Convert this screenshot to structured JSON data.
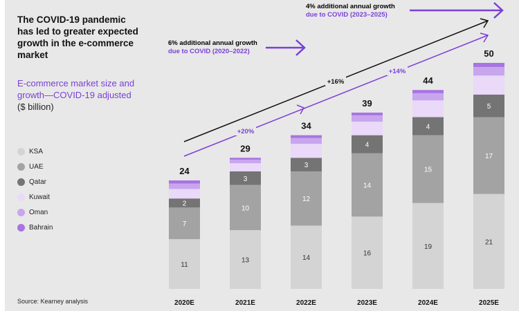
{
  "headline": "The COVID-19 pandemic has led to greater expected growth in the e-commerce market",
  "subtitle": "E-commerce market size and growth—COVID-19 adjusted",
  "unit": "($ billion)",
  "source": "Source: Kearney analysis",
  "annotations": {
    "a1_line1": "6% additional annual growth",
    "a1_line2": "due to COVID (2020–2022)",
    "a2_line1": "4% additional annual growth",
    "a2_line2": "due to COVID (2023–2025)"
  },
  "colors": {
    "background": "#e8e8e8",
    "accent": "#7a3fd6",
    "KSA": "#d4d4d4",
    "UAE": "#a3a3a3",
    "Qatar": "#747474",
    "Kuwait": "#ead9f8",
    "Oman": "#c8a6ee",
    "Bahrain": "#a873e2"
  },
  "chart_data": {
    "type": "bar",
    "stacked": true,
    "categories": [
      "2020E",
      "2021E",
      "2022E",
      "2023E",
      "2024E",
      "2025E"
    ],
    "totals": [
      24,
      29,
      34,
      39,
      44,
      50
    ],
    "series": [
      {
        "name": "KSA",
        "values": [
          11,
          13,
          14,
          16,
          19,
          21
        ],
        "labeled": true
      },
      {
        "name": "UAE",
        "values": [
          7,
          10,
          12,
          14,
          15,
          17
        ],
        "labeled": true
      },
      {
        "name": "Qatar",
        "values": [
          2,
          3,
          3,
          4,
          4,
          5
        ],
        "labeled": true
      },
      {
        "name": "Kuwait",
        "values": [
          2.1,
          1.8,
          3.1,
          3.0,
          3.7,
          4.2
        ],
        "labeled": false
      },
      {
        "name": "Oman",
        "values": [
          1.2,
          0.8,
          1.3,
          1.4,
          1.6,
          1.9
        ],
        "labeled": false
      },
      {
        "name": "Bahrain",
        "values": [
          0.7,
          0.4,
          0.6,
          0.6,
          0.7,
          0.9
        ],
        "labeled": false
      }
    ],
    "growth_labels": [
      {
        "text": "+16%",
        "color": "#111111"
      },
      {
        "text": "+20%",
        "color": "#7a3fd6"
      },
      {
        "text": "+14%",
        "color": "#7a3fd6"
      }
    ],
    "ylim": [
      0,
      50
    ],
    "grid": false,
    "legend": "left"
  }
}
